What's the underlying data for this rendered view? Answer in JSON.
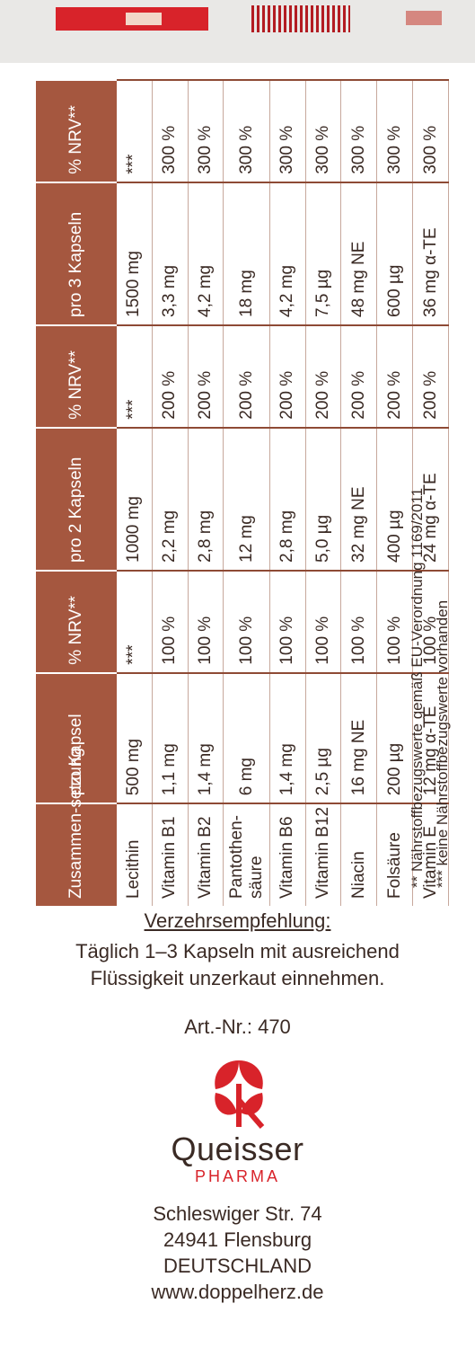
{
  "table": {
    "headers": [
      "Zusammen-setzung",
      "pro Kapsel",
      "% NRV**",
      "pro 2 Kapseln",
      "% NRV**",
      "pro 3 Kapseln",
      "% NRV**"
    ],
    "rows": [
      [
        "Lecithin",
        "500 mg",
        "***",
        "1000 mg",
        "***",
        "1500 mg",
        "***"
      ],
      [
        "Vitamin B1",
        "1,1 mg",
        "100 %",
        "2,2 mg",
        "200 %",
        "3,3 mg",
        "300 %"
      ],
      [
        "Vitamin B2",
        "1,4 mg",
        "100 %",
        "2,8 mg",
        "200 %",
        "4,2 mg",
        "300 %"
      ],
      [
        "Pantothen-säure",
        "6 mg",
        "100 %",
        "12 mg",
        "200 %",
        "18 mg",
        "300 %"
      ],
      [
        "Vitamin B6",
        "1,4 mg",
        "100 %",
        "2,8 mg",
        "200 %",
        "4,2 mg",
        "300 %"
      ],
      [
        "Vitamin B12",
        "2,5 µg",
        "100 %",
        "5,0 µg",
        "200 %",
        "7,5 µg",
        "300 %"
      ],
      [
        "Niacin",
        "16 mg NE",
        "100 %",
        "32 mg NE",
        "200 %",
        "48 mg NE",
        "300 %"
      ],
      [
        "Folsäure",
        "200 µg",
        "100 %",
        "400 µg",
        "200 %",
        "600 µg",
        "300 %"
      ],
      [
        "Vitamin E",
        "12 mg α-TE",
        "100 %",
        "24 mg α-TE",
        "200 %",
        "36 mg α-TE",
        "300 %"
      ]
    ]
  },
  "footnotes": {
    "f1": "**  Nährstoffbezugswerte gemäß EU-Verordnung 1169/2011",
    "f2": "*** keine Nährstoffbezugswerte vorhanden"
  },
  "usage": {
    "title": "Verzehrsempfehlung:",
    "line1": "Täglich 1–3 Kapseln mit ausreichend",
    "line2": "Flüssigkeit unzerkaut einnehmen."
  },
  "article": "Art.-Nr.: 470",
  "brand": {
    "name": "Queisser",
    "sub": "PHARMA",
    "logo_icon": "queisser-leaf-logo",
    "accent": "#d8232a"
  },
  "address": {
    "street": "Schleswiger Str. 74",
    "city": "24941 Flensburg",
    "country": "DEUTSCHLAND",
    "web": "www.doppelherz.de"
  },
  "colors": {
    "header_bg": "#a5573f",
    "rule": "#8e4a35",
    "text": "#3a2a24"
  }
}
